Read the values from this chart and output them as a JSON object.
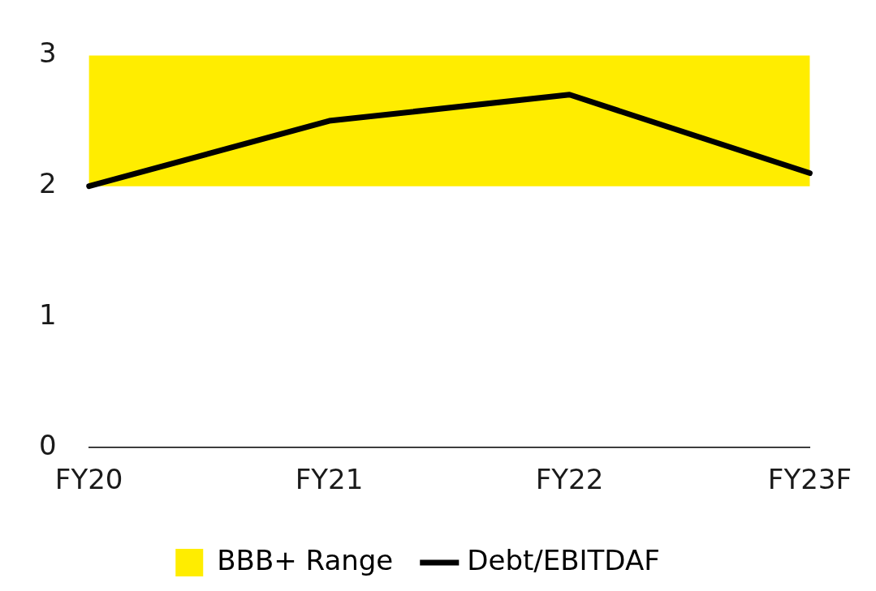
{
  "chart_data": {
    "type": "line",
    "categories": [
      "FY20",
      "FY21",
      "FY22",
      "FY23F"
    ],
    "series": [
      {
        "name": "Debt/EBITDAF",
        "color": "#000000",
        "values": [
          2.0,
          2.5,
          2.7,
          2.1
        ]
      }
    ],
    "bands": [
      {
        "axis": "y",
        "from": 2,
        "to": 3,
        "label": "BBB+ Range",
        "color": "#ffed00"
      }
    ],
    "ylim": [
      0,
      3
    ],
    "yticks": [
      0,
      1,
      2,
      3
    ],
    "grid": false,
    "legend": "bottom",
    "marker": "none",
    "line_style": "solid"
  }
}
